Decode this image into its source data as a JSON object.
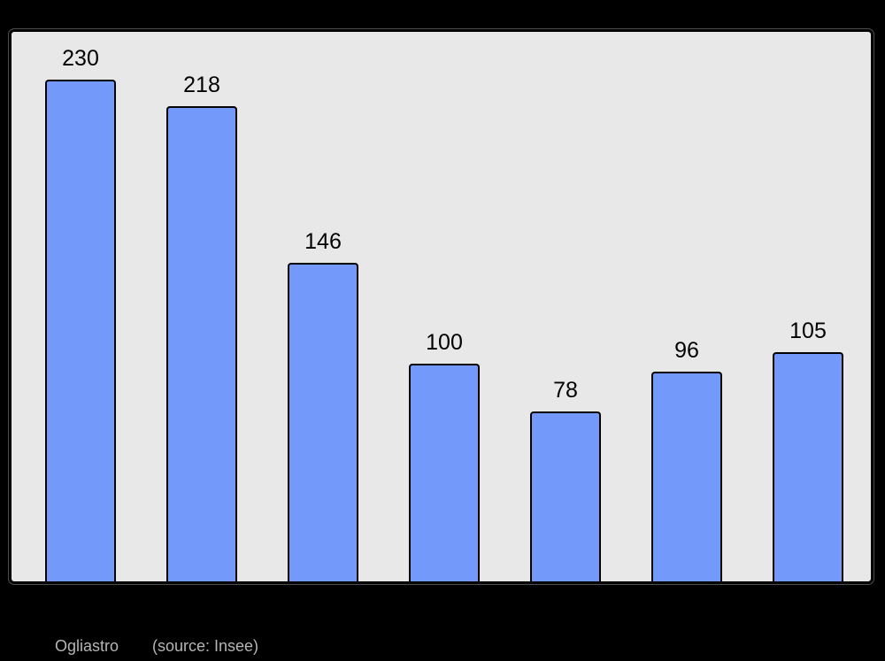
{
  "page": {
    "background_color": "#000000"
  },
  "chart_data": {
    "type": "bar",
    "title": "",
    "xlabel": "",
    "ylabel": "",
    "values": [
      230,
      218,
      146,
      100,
      78,
      96,
      105
    ],
    "data_labels": [
      "230",
      "218",
      "146",
      "100",
      "78",
      "96",
      "105"
    ],
    "ylim": [
      0,
      252
    ],
    "grid": false,
    "legend": false,
    "bar_fill_color": "#7399fa",
    "bar_border_color": "#000000",
    "plot_background_color": "#e8e8e8",
    "plot_border_color": "#000000",
    "value_label_color": "#000000"
  },
  "caption": {
    "title": "Ogliastro",
    "source": "(source: Insee)",
    "text_color": "#b5b5b5"
  }
}
